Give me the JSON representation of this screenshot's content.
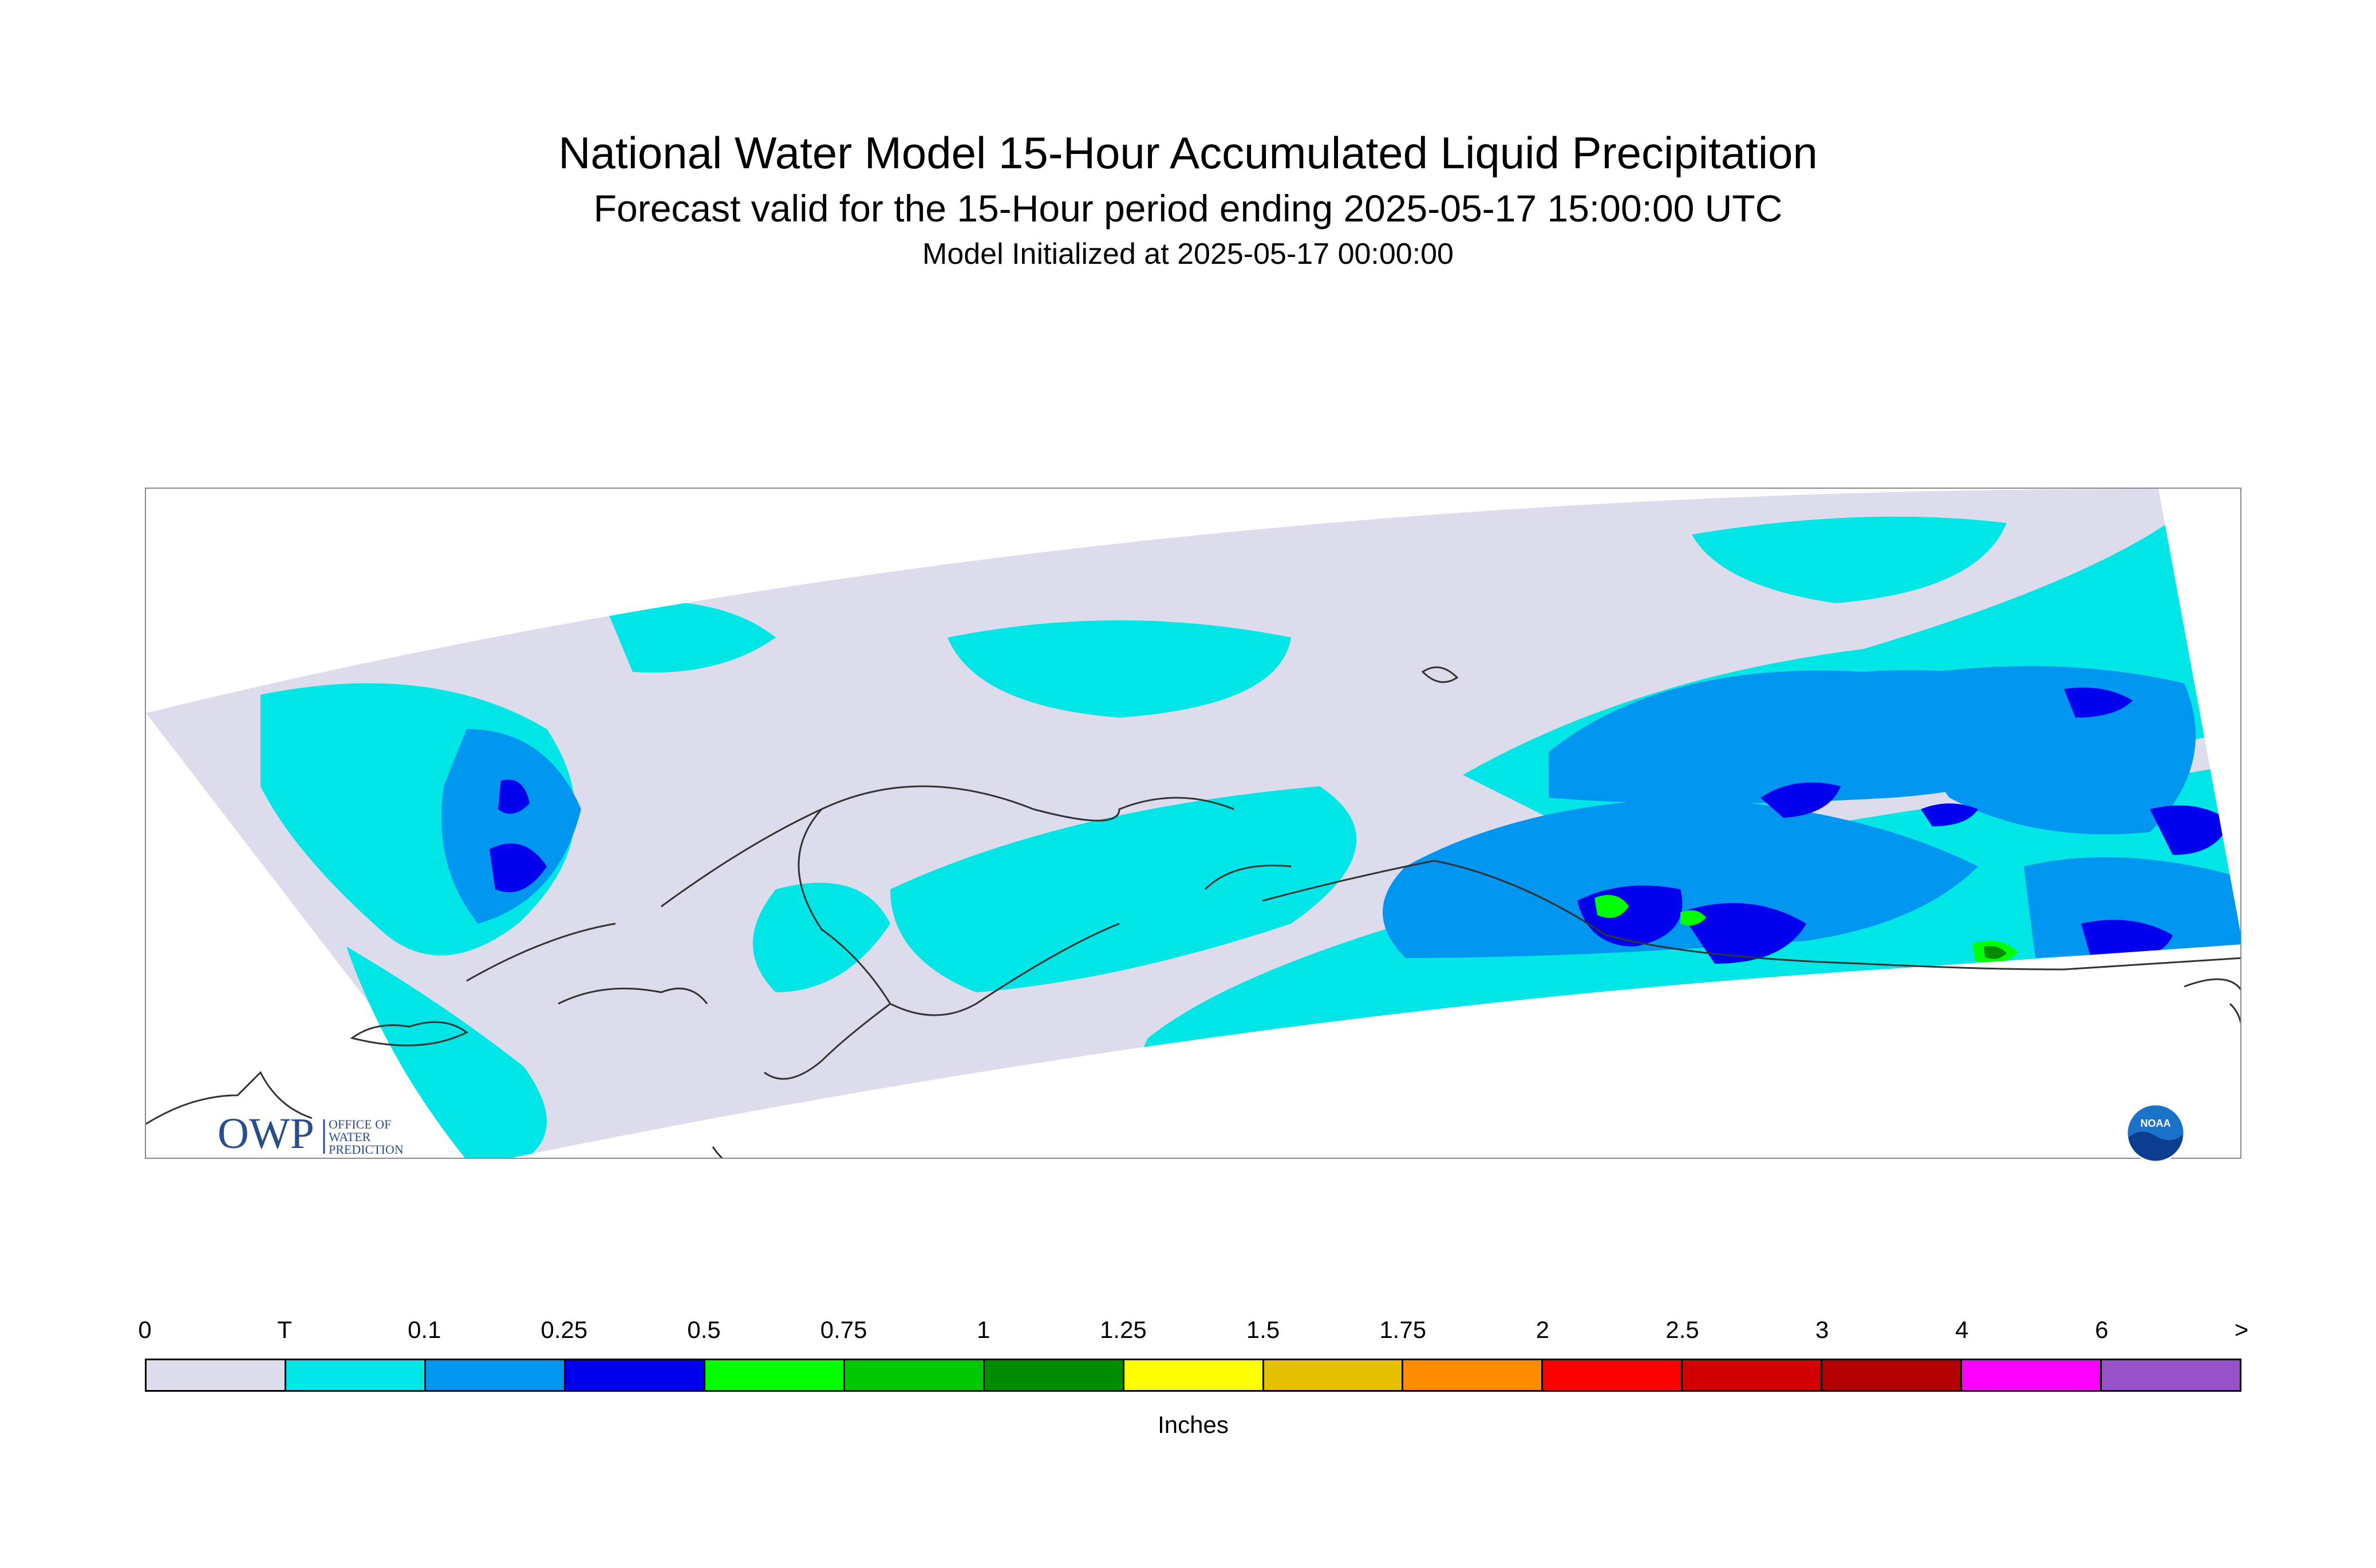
{
  "header": {
    "title": "National Water Model 15-Hour Accumulated Liquid Precipitation",
    "subtitle": "Forecast valid for the 15-Hour period ending 2025-05-17 15:00:00 UTC",
    "init": "Model Initialized at 2025-05-17 00:00:00"
  },
  "map": {
    "colors": {
      "zero": "#dcdcec",
      "trace": "#00e5e5",
      "light": "#0095ee",
      "moderate": "#0000ee",
      "heavy": "#00ff00",
      "heavier": "#00c800",
      "heaviest": "#008c00",
      "coastline": "#333333"
    },
    "logos": {
      "owp_text": "OWP",
      "owp_subtext": [
        "OFFICE OF",
        "WATER",
        "PREDICTION"
      ],
      "noaa_text": "NOAA"
    }
  },
  "legend": {
    "ticks": [
      "0",
      "T",
      "0.1",
      "0.25",
      "0.5",
      "0.75",
      "1",
      "1.25",
      "1.5",
      "1.75",
      "2",
      "2.5",
      "3",
      "4",
      "6",
      ">"
    ],
    "colors": [
      "#dcdcec",
      "#00e5e5",
      "#0095ee",
      "#0000ee",
      "#00ff00",
      "#00c800",
      "#008c00",
      "#ffff00",
      "#e6be00",
      "#ff8c00",
      "#ff0000",
      "#d20000",
      "#b40000",
      "#ff00ff",
      "#9650c8"
    ],
    "units": "Inches"
  }
}
